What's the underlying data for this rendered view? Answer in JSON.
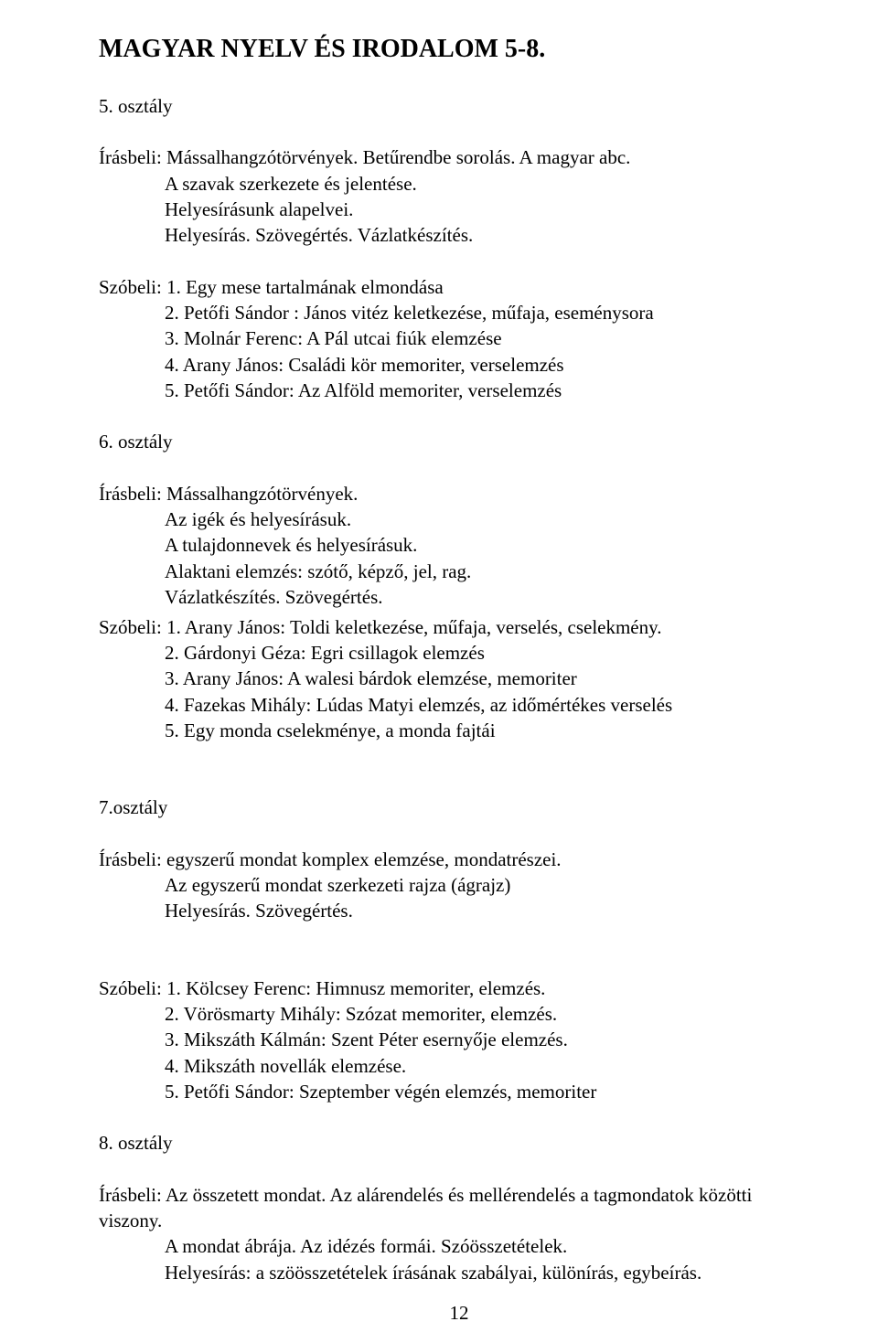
{
  "document": {
    "title": "MAGYAR NYELV ÉS IRODALOM 5-8.",
    "page_number": "12",
    "text_color": "#000000",
    "background_color": "#ffffff",
    "font_family": "Times New Roman",
    "title_fontsize_pt": 21,
    "body_fontsize_pt": 16
  },
  "grade5": {
    "heading": "5. osztály",
    "irasbeli": {
      "line1": "Írásbeli: Mássalhangzótörvények. Betűrendbe sorolás. A magyar abc.",
      "line2": "A szavak szerkezete és jelentése.",
      "line3": "Helyesírásunk  alapelvei.",
      "line4": "Helyesírás. Szövegértés. Vázlatkészítés."
    },
    "szobeli": {
      "label": "Szóbeli: 1. Egy mese tartalmának elmondása",
      "items": [
        "2. Petőfi Sándor : János vitéz keletkezése, műfaja, eseménysora",
        "3. Molnár Ferenc: A Pál utcai fiúk elemzése",
        "4. Arany János: Családi kör memoriter, verselemzés",
        "5. Petőfi   Sándor: Az Alföld memoriter, verselemzés"
      ]
    }
  },
  "grade6": {
    "heading": "6. osztály",
    "irasbeli": {
      "line1": "Írásbeli: Mássalhangzótörvények.",
      "line2": "Az igék és helyesírásuk.",
      "line3": "A tulajdonnevek és helyesírásuk.",
      "line4": "Alaktani elemzés: szótő, képző, jel, rag.",
      "line5": "Vázlatkészítés. Szövegértés."
    },
    "szobeli": {
      "label": "Szóbeli: 1. Arany János: Toldi keletkezése, műfaja, verselés, cselekmény.",
      "items": [
        "2. Gárdonyi Géza: Egri csillagok elemzés",
        "3. Arany János: A walesi bárdok elemzése, memoriter",
        "4. Fazekas Mihály: Lúdas Matyi  elemzés, az időmértékes verselés",
        "5. Egy monda cselekménye, a monda fajtái"
      ]
    }
  },
  "grade7": {
    "heading": "7.osztály",
    "irasbeli": {
      "line1": "Írásbeli: egyszerű mondat komplex elemzése, mondatrészei.",
      "line2": "Az egyszerű mondat szerkezeti rajza (ágrajz)",
      "line3": "Helyesírás. Szövegértés."
    },
    "szobeli": {
      "label": "Szóbeli: 1. Kölcsey Ferenc: Himnusz memoriter, elemzés.",
      "items": [
        "2. Vörösmarty Mihály: Szózat memoriter, elemzés.",
        "3. Mikszáth Kálmán: Szent Péter esernyője elemzés.",
        "4. Mikszáth novellák elemzése.",
        "5. Petőfi Sándor: Szeptember végén elemzés, memoriter"
      ]
    }
  },
  "grade8": {
    "heading": "8. osztály",
    "irasbeli": {
      "line1": "Írásbeli: Az összetett mondat. Az alárendelés és mellérendelés a tagmondatok közötti viszony.",
      "line2": "A mondat ábrája. Az idézés formái. Szóösszetételek.",
      "line3": "Helyesírás: a szöösszetételek írásának szabályai, különírás, egybeírás."
    }
  }
}
